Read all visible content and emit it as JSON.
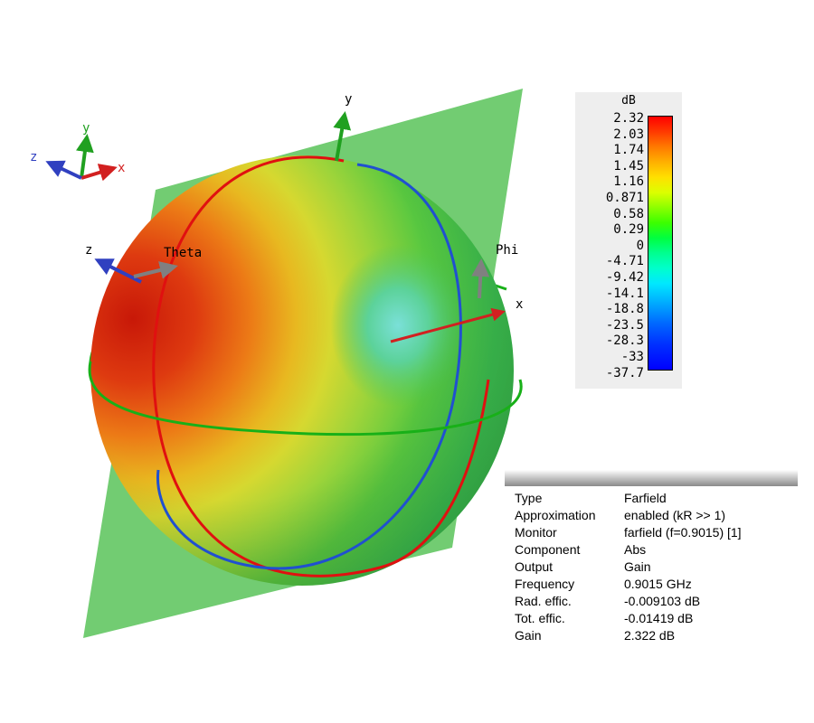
{
  "axis_triad": {
    "z": "z",
    "y": "y",
    "x": "x"
  },
  "axes": {
    "y": "y",
    "z": "z",
    "x": "x",
    "theta": "Theta",
    "phi": "Phi"
  },
  "legend": {
    "unit": "dB",
    "ticks": [
      "2.32",
      "2.03",
      "1.74",
      "1.45",
      "1.16",
      "0.871",
      "0.58",
      "0.29",
      "0",
      "-4.71",
      "-9.42",
      "-14.1",
      "-18.8",
      "-23.5",
      "-28.3",
      "-33",
      "-37.7"
    ]
  },
  "info": [
    {
      "key": "Type",
      "value": "Farfield"
    },
    {
      "key": "Approximation",
      "value": "enabled (kR >> 1)"
    },
    {
      "key": "Monitor",
      "value": "farfield (f=0.9015) [1]"
    },
    {
      "key": "Component",
      "value": "Abs"
    },
    {
      "key": "Output",
      "value": "Gain"
    },
    {
      "key": "Frequency",
      "value": "0.9015 GHz"
    },
    {
      "key": "Rad. effic.",
      "value": "-0.009103 dB"
    },
    {
      "key": "Tot. effic.",
      "value": "-0.01419 dB"
    },
    {
      "key": "Gain",
      "value": "2.322 dB"
    }
  ],
  "colors": {
    "x_axis": "#d22020",
    "y_axis": "#20a020",
    "z_axis": "#3040c0",
    "theta_ring": "#e01010",
    "phi_ring": "#2050d0",
    "equator_ring": "#18b018",
    "plane": "#3cb83c"
  }
}
